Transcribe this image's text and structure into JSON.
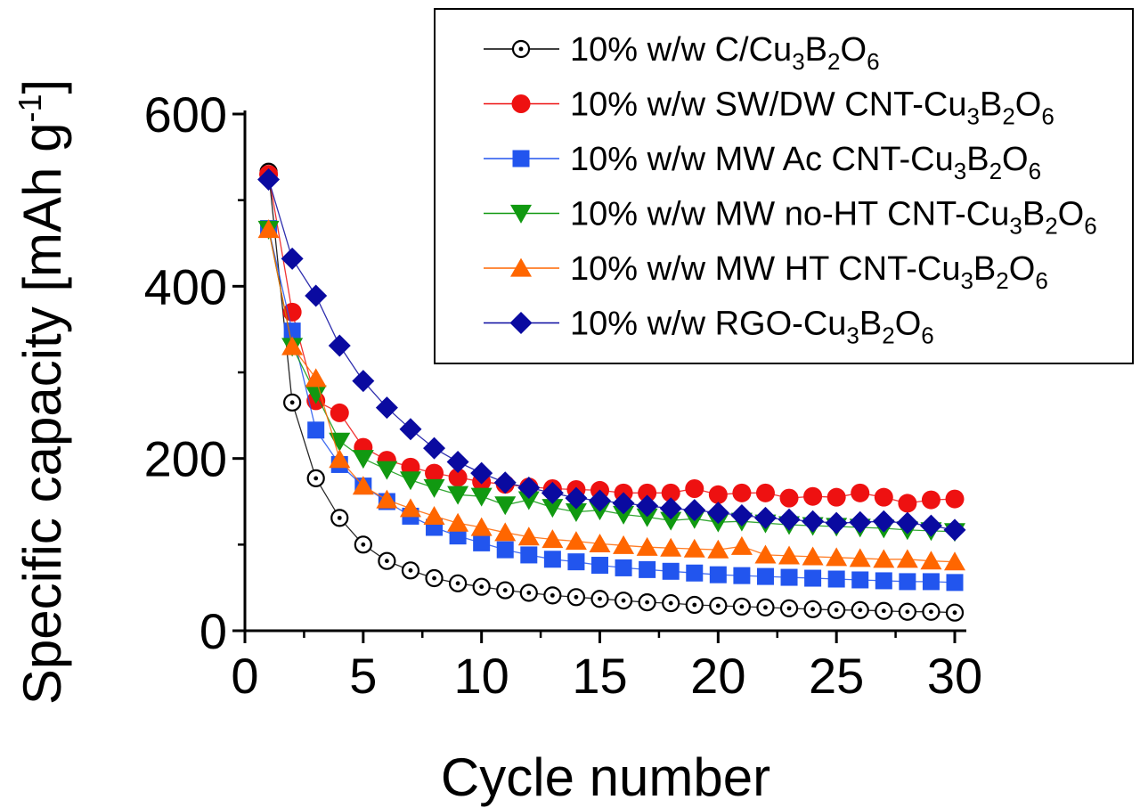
{
  "chart_data": {
    "type": "line",
    "title": "",
    "xlabel": "Cycle number",
    "ylabel": "Specific capacity [mAh g⁻¹]",
    "ylabel_main": "Specific capacity [mAh g",
    "ylabel_sup": "-1",
    "ylabel_close": "]",
    "xlim": [
      0,
      30
    ],
    "ylim": [
      0,
      600
    ],
    "xticks": [
      0,
      5,
      10,
      15,
      20,
      25,
      30
    ],
    "yticks": [
      0,
      200,
      400,
      600
    ],
    "grid": false,
    "legend_position": "top-right",
    "series": [
      {
        "name": "10% w/w C/Cu3B2O6",
        "legend_prefix": "10% w/w C/Cu",
        "marker": "open-circle",
        "color": "#000000",
        "x": [
          1,
          2,
          3,
          4,
          5,
          6,
          7,
          8,
          9,
          10,
          11,
          12,
          13,
          14,
          15,
          16,
          17,
          18,
          19,
          20,
          21,
          22,
          23,
          24,
          25,
          26,
          27,
          28,
          29,
          30
        ],
        "values": [
          533,
          265,
          177,
          131,
          100,
          81,
          70,
          61,
          55,
          51,
          47,
          44,
          41,
          39,
          37,
          35,
          33,
          32,
          30,
          29,
          28,
          27,
          26,
          25,
          24,
          24,
          23,
          22,
          22,
          21
        ]
      },
      {
        "name": "10% w/w SW/DW CNT-Cu3B2O6",
        "legend_prefix": "10% w/w SW/DW CNT-Cu",
        "marker": "filled-circle",
        "color": "#ee1111",
        "x": [
          1,
          2,
          3,
          4,
          5,
          6,
          7,
          8,
          9,
          10,
          11,
          12,
          13,
          14,
          15,
          16,
          17,
          18,
          19,
          20,
          21,
          22,
          23,
          24,
          25,
          26,
          27,
          28,
          29,
          30
        ],
        "values": [
          530,
          370,
          267,
          253,
          213,
          198,
          190,
          183,
          178,
          173,
          170,
          167,
          165,
          164,
          163,
          160,
          160,
          160,
          165,
          158,
          160,
          160,
          154,
          156,
          155,
          160,
          155,
          148,
          152,
          153
        ]
      },
      {
        "name": "10% w/w MW Ac CNT-Cu3B2O6",
        "legend_prefix": "10% w/w MW Ac CNT-Cu",
        "marker": "square",
        "color": "#2255ee",
        "x": [
          1,
          2,
          3,
          4,
          5,
          6,
          7,
          8,
          9,
          10,
          11,
          12,
          13,
          14,
          15,
          16,
          17,
          18,
          19,
          20,
          21,
          22,
          23,
          24,
          25,
          26,
          27,
          28,
          29,
          30
        ],
        "values": [
          467,
          348,
          233,
          193,
          168,
          150,
          133,
          120,
          110,
          102,
          94,
          88,
          83,
          80,
          76,
          73,
          71,
          69,
          67,
          65,
          64,
          63,
          62,
          61,
          60,
          59,
          58,
          57,
          57,
          56
        ]
      },
      {
        "name": "10% w/w MW no-HT CNT-Cu3B2O6",
        "legend_prefix": "10% w/w MW no-HT CNT-Cu",
        "marker": "triangle-down",
        "color": "#119911",
        "x": [
          1,
          2,
          3,
          4,
          5,
          6,
          7,
          8,
          9,
          10,
          11,
          12,
          13,
          14,
          15,
          16,
          17,
          18,
          19,
          20,
          21,
          22,
          23,
          24,
          25,
          26,
          27,
          28,
          29,
          30
        ],
        "values": [
          466,
          330,
          275,
          220,
          200,
          187,
          175,
          166,
          158,
          156,
          146,
          152,
          143,
          138,
          140,
          135,
          132,
          128,
          130,
          126,
          127,
          125,
          123,
          122,
          121,
          120,
          119,
          117,
          116,
          115
        ]
      },
      {
        "name": "10% w/w MW HT CNT-Cu3B2O6",
        "legend_prefix": "10% w/w MW HT CNT-Cu",
        "marker": "triangle-up",
        "color": "#ff6600",
        "x": [
          1,
          2,
          3,
          4,
          5,
          6,
          7,
          8,
          9,
          10,
          11,
          12,
          13,
          14,
          15,
          16,
          17,
          18,
          19,
          20,
          21,
          22,
          23,
          24,
          25,
          26,
          27,
          28,
          29,
          30
        ],
        "values": [
          466,
          330,
          293,
          199,
          168,
          152,
          142,
          133,
          125,
          120,
          114,
          109,
          106,
          104,
          101,
          99,
          97,
          96,
          95,
          94,
          98,
          88,
          87,
          86,
          85,
          84,
          83,
          83,
          81,
          80
        ]
      },
      {
        "name": "10% w/w RGO-Cu3B2O6",
        "legend_prefix": "10% w/w RGO-Cu",
        "marker": "diamond",
        "color": "#0a0aa0",
        "x": [
          1,
          2,
          3,
          4,
          5,
          6,
          7,
          8,
          9,
          10,
          11,
          12,
          13,
          14,
          15,
          16,
          17,
          18,
          19,
          20,
          21,
          22,
          23,
          24,
          25,
          26,
          27,
          28,
          29,
          30
        ],
        "values": [
          524,
          432,
          389,
          331,
          290,
          259,
          234,
          212,
          196,
          183,
          172,
          166,
          160,
          154,
          151,
          148,
          145,
          142,
          140,
          137,
          134,
          131,
          129,
          127,
          125,
          126,
          127,
          125,
          122,
          117
        ]
      }
    ],
    "formula_parts": {
      "sub1": "3",
      "mid": "B",
      "sub2": "2",
      "end": "O",
      "sub3": "6"
    }
  }
}
